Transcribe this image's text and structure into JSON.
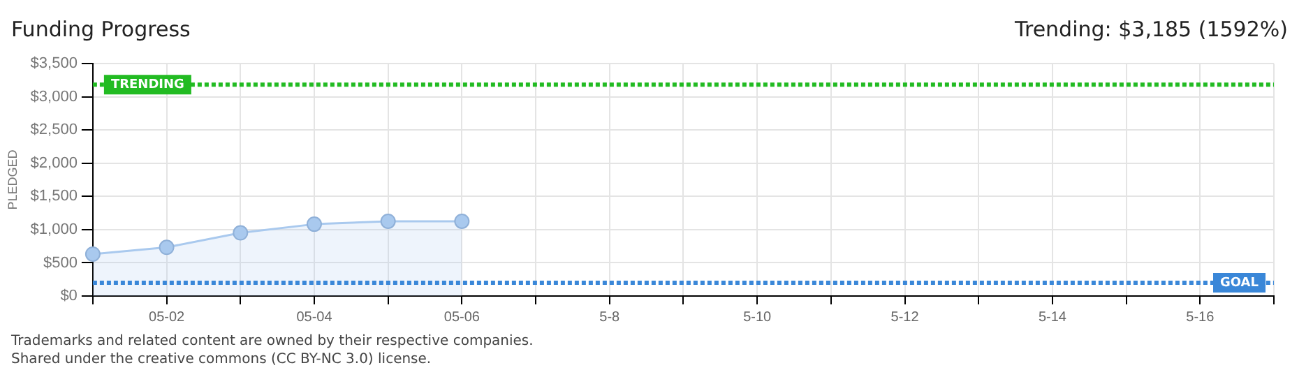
{
  "chart_data": {
    "type": "area",
    "title": "Funding Progress",
    "ylabel": "PLEDGED",
    "categories": [
      null,
      "05-02",
      null,
      "05-04",
      null,
      "05-06",
      null,
      "5-8",
      null,
      "5-10",
      null,
      "5-12",
      null,
      "5-14",
      null,
      "5-16",
      null
    ],
    "series": [
      {
        "color": "#a9c9ee",
        "values": [
          632,
          733,
          951,
          1082,
          1126,
          1126,
          null,
          null,
          null,
          null,
          null,
          null,
          null,
          null,
          null,
          null,
          null
        ]
      }
    ],
    "ylim": [
      0,
      3500
    ],
    "yticks": [
      {
        "value": 0,
        "label": "$0"
      },
      {
        "value": 500,
        "label": "$500"
      },
      {
        "value": 1000,
        "label": "$1,000"
      },
      {
        "value": 1500,
        "label": "$1,500"
      },
      {
        "value": 2000,
        "label": "$2,000"
      },
      {
        "value": 2500,
        "label": "$2,500"
      },
      {
        "value": 3000,
        "label": "$3,000"
      },
      {
        "value": 3500,
        "label": "$3,500"
      }
    ],
    "ref_lines": [
      {
        "axis": "y",
        "value": 3185,
        "label": "TRENDING",
        "color": "#22bb22",
        "line_style": "dotted"
      },
      {
        "axis": "y",
        "value": 200,
        "label": "GOAL",
        "color": "#3a87d8",
        "line_style": "dotted"
      }
    ],
    "annotations": [
      "Trending: $3,185 (1592%)",
      "Trademarks and related content are owned by their respective companies.",
      "Shared under the creative commons (CC BY-NC 3.0) license."
    ],
    "grid": true,
    "legend": false,
    "marker": "circle",
    "line_style": "solid"
  }
}
